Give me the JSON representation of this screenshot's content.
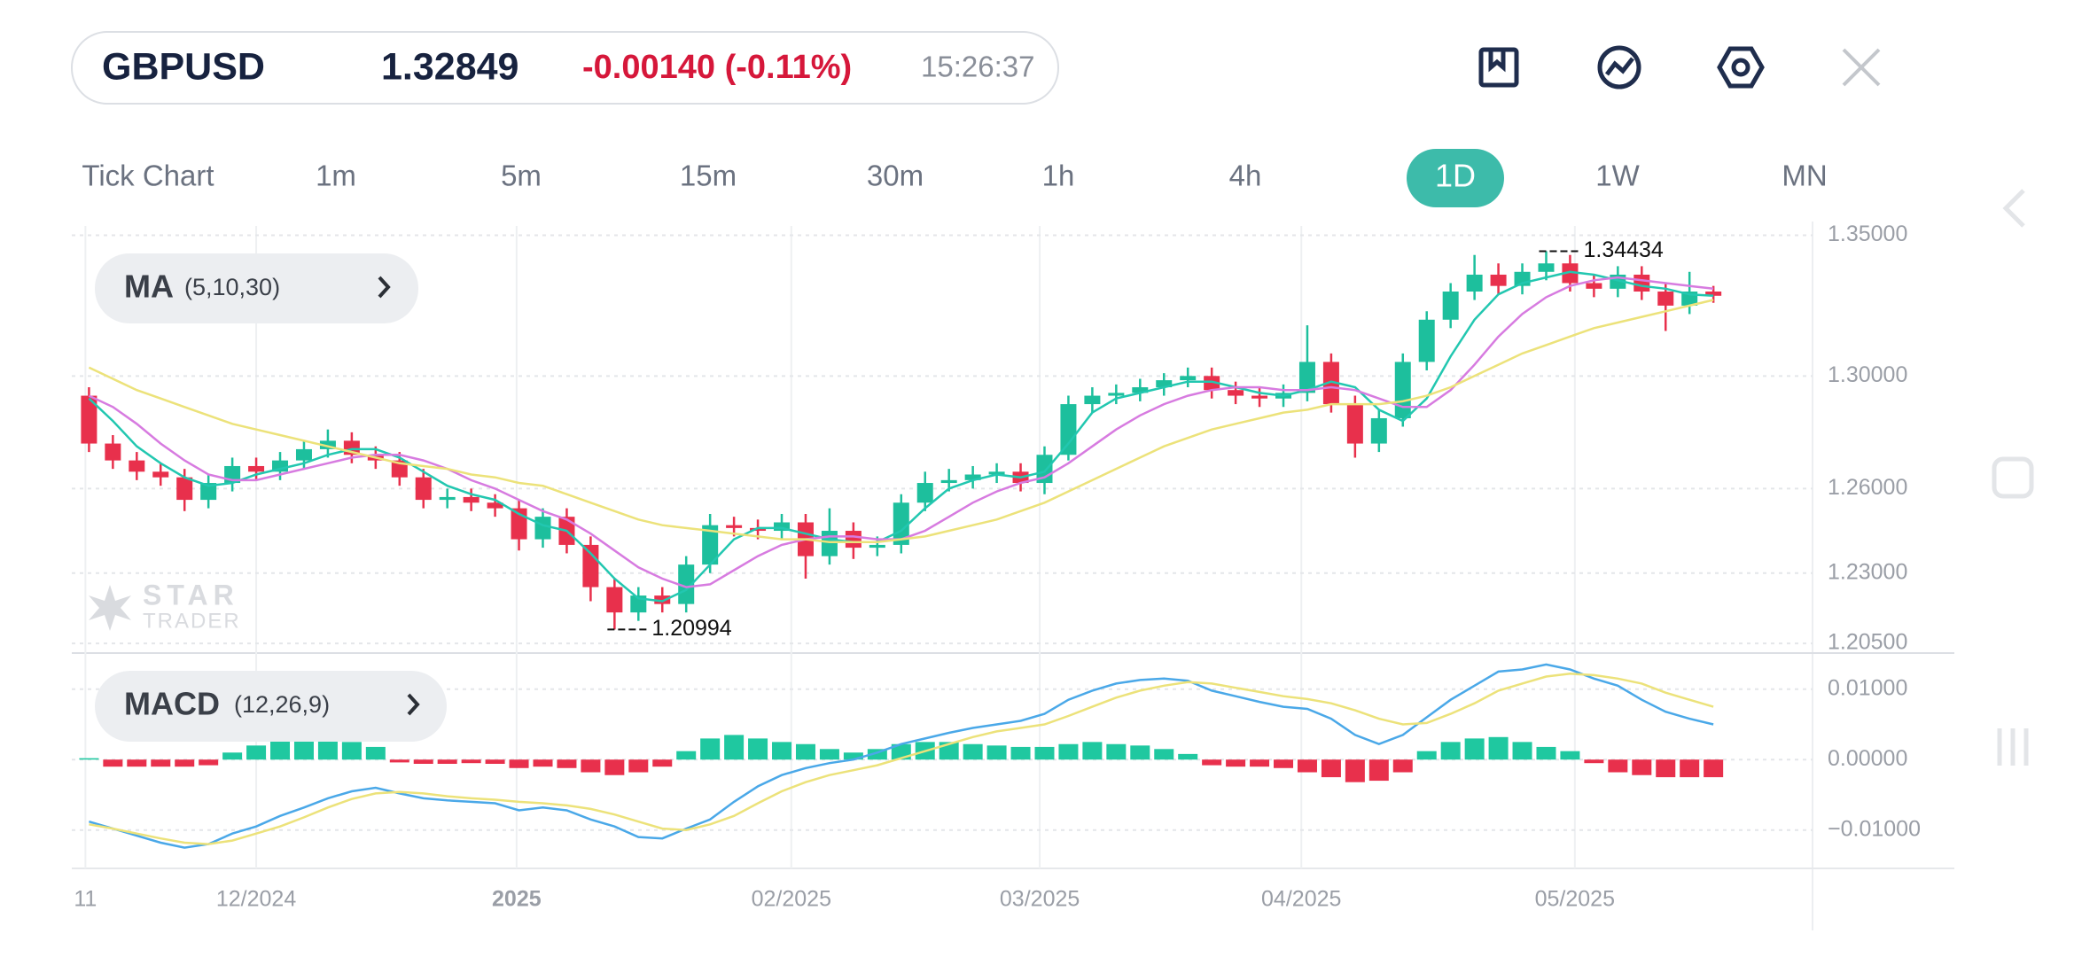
{
  "header": {
    "symbol": "GBPUSD",
    "price": "1.32849",
    "change": "-0.00140 (-0.11%)",
    "time": "15:26:37"
  },
  "timeframes": {
    "items": [
      "Tick Chart",
      "1m",
      "5m",
      "15m",
      "30m",
      "1h",
      "4h",
      "1D",
      "1W",
      "MN"
    ],
    "active": 7
  },
  "watermark": [
    "STAR",
    "TRADER"
  ],
  "chart_data": [
    {
      "type": "candlestick",
      "indicator": {
        "name": "MA",
        "params": "(5,10,30)"
      },
      "up_color": "#1dbf9d",
      "down_color": "#e8304c",
      "x": [
        1,
        3,
        5,
        7,
        9,
        11,
        13,
        15,
        17,
        19,
        21,
        23,
        25,
        27,
        29,
        31,
        33,
        35,
        37,
        39,
        41,
        43,
        45,
        47,
        49,
        51,
        53,
        55,
        57,
        59,
        61,
        63,
        65,
        67,
        69,
        71,
        73,
        75,
        77,
        79,
        81,
        83,
        85,
        87,
        89,
        91,
        93,
        95,
        97,
        99,
        101,
        103,
        105,
        107,
        109,
        111,
        113,
        115,
        117,
        119,
        121,
        123,
        125,
        127,
        129,
        131,
        133,
        135,
        137
      ],
      "open": [
        1.293,
        1.276,
        1.27,
        1.266,
        1.264,
        1.256,
        1.262,
        1.268,
        1.266,
        1.27,
        1.274,
        1.277,
        1.272,
        1.27,
        1.264,
        1.256,
        1.257,
        1.255,
        1.253,
        1.242,
        1.25,
        1.24,
        1.225,
        1.216,
        1.222,
        1.219,
        1.233,
        1.247,
        1.246,
        1.245,
        1.248,
        1.236,
        1.245,
        1.239,
        1.24,
        1.255,
        1.262,
        1.263,
        1.265,
        1.266,
        1.262,
        1.272,
        1.29,
        1.293,
        1.294,
        1.296,
        1.2985,
        1.3,
        1.295,
        1.293,
        1.292,
        1.294,
        1.305,
        1.29,
        1.276,
        1.285,
        1.305,
        1.32,
        1.33,
        1.336,
        1.332,
        1.337,
        1.34,
        1.333,
        1.331,
        1.336,
        1.33,
        1.325,
        1.33
      ],
      "high": [
        1.296,
        1.279,
        1.273,
        1.269,
        1.267,
        1.265,
        1.271,
        1.271,
        1.273,
        1.277,
        1.281,
        1.28,
        1.275,
        1.273,
        1.267,
        1.26,
        1.26,
        1.258,
        1.256,
        1.253,
        1.253,
        1.243,
        1.228,
        1.225,
        1.225,
        1.236,
        1.251,
        1.25,
        1.249,
        1.251,
        1.251,
        1.253,
        1.248,
        1.243,
        1.258,
        1.266,
        1.267,
        1.268,
        1.269,
        1.269,
        1.275,
        1.293,
        1.296,
        1.297,
        1.299,
        1.301,
        1.303,
        1.303,
        1.298,
        1.296,
        1.297,
        1.318,
        1.308,
        1.293,
        1.288,
        1.308,
        1.323,
        1.333,
        1.343,
        1.34,
        1.34,
        1.34434,
        1.343,
        1.336,
        1.339,
        1.339,
        1.333,
        1.337,
        1.332
      ],
      "low": [
        1.273,
        1.267,
        1.263,
        1.261,
        1.252,
        1.253,
        1.259,
        1.263,
        1.263,
        1.267,
        1.271,
        1.269,
        1.267,
        1.261,
        1.253,
        1.253,
        1.252,
        1.25,
        1.238,
        1.239,
        1.237,
        1.22,
        1.20994,
        1.213,
        1.216,
        1.216,
        1.23,
        1.243,
        1.242,
        1.242,
        1.228,
        1.233,
        1.235,
        1.236,
        1.237,
        1.252,
        1.259,
        1.26,
        1.262,
        1.259,
        1.258,
        1.27,
        1.287,
        1.29,
        1.291,
        1.293,
        1.296,
        1.292,
        1.29,
        1.289,
        1.289,
        1.291,
        1.287,
        1.271,
        1.273,
        1.282,
        1.302,
        1.317,
        1.327,
        1.329,
        1.329,
        1.334,
        1.33,
        1.328,
        1.328,
        1.327,
        1.316,
        1.322,
        1.326
      ],
      "close": [
        1.276,
        1.27,
        1.266,
        1.264,
        1.256,
        1.262,
        1.268,
        1.266,
        1.27,
        1.274,
        1.277,
        1.272,
        1.27,
        1.264,
        1.256,
        1.257,
        1.255,
        1.253,
        1.242,
        1.25,
        1.24,
        1.225,
        1.216,
        1.222,
        1.219,
        1.233,
        1.247,
        1.246,
        1.245,
        1.248,
        1.236,
        1.245,
        1.239,
        1.24,
        1.255,
        1.262,
        1.263,
        1.265,
        1.266,
        1.262,
        1.272,
        1.29,
        1.293,
        1.294,
        1.296,
        1.2985,
        1.3,
        1.295,
        1.293,
        1.292,
        1.294,
        1.305,
        1.29,
        1.276,
        1.285,
        1.305,
        1.32,
        1.33,
        1.336,
        1.332,
        1.337,
        1.34,
        1.333,
        1.331,
        1.336,
        1.33,
        1.325,
        1.33,
        1.3285
      ],
      "overlays": [
        {
          "color": "#22c7b0",
          "values": [
            1.292,
            1.284,
            1.275,
            1.269,
            1.264,
            1.261,
            1.262,
            1.265,
            1.267,
            1.269,
            1.272,
            1.274,
            1.274,
            1.271,
            1.266,
            1.261,
            1.258,
            1.256,
            1.251,
            1.247,
            1.245,
            1.237,
            1.228,
            1.221,
            1.22,
            1.224,
            1.233,
            1.242,
            1.246,
            1.246,
            1.244,
            1.242,
            1.241,
            1.241,
            1.245,
            1.253,
            1.26,
            1.263,
            1.265,
            1.264,
            1.266,
            1.276,
            1.287,
            1.292,
            1.294,
            1.296,
            1.298,
            1.298,
            1.296,
            1.294,
            1.293,
            1.295,
            1.298,
            1.296,
            1.288,
            1.284,
            1.292,
            1.307,
            1.32,
            1.329,
            1.333,
            1.335,
            1.337,
            1.336,
            1.334,
            1.332,
            1.331,
            1.329,
            1.3285
          ]
        },
        {
          "color": "#d77be0",
          "values": [
            1.293,
            1.289,
            1.283,
            1.276,
            1.27,
            1.265,
            1.263,
            1.263,
            1.265,
            1.267,
            1.269,
            1.271,
            1.272,
            1.272,
            1.27,
            1.267,
            1.263,
            1.26,
            1.256,
            1.252,
            1.249,
            1.244,
            1.238,
            1.232,
            1.228,
            1.225,
            1.226,
            1.231,
            1.236,
            1.24,
            1.242,
            1.243,
            1.243,
            1.242,
            1.242,
            1.245,
            1.25,
            1.255,
            1.259,
            1.262,
            1.264,
            1.269,
            1.275,
            1.281,
            1.286,
            1.29,
            1.293,
            1.295,
            1.296,
            1.296,
            1.295,
            1.295,
            1.296,
            1.295,
            1.292,
            1.289,
            1.289,
            1.295,
            1.304,
            1.314,
            1.322,
            1.328,
            1.332,
            1.334,
            1.335,
            1.334,
            1.333,
            1.332,
            1.331
          ]
        },
        {
          "color": "#ece27a",
          "values": [
            1.303,
            1.299,
            1.295,
            1.292,
            1.289,
            1.286,
            1.283,
            1.281,
            1.279,
            1.277,
            1.275,
            1.273,
            1.271,
            1.269,
            1.268,
            1.267,
            1.265,
            1.264,
            1.262,
            1.261,
            1.258,
            1.255,
            1.252,
            1.249,
            1.247,
            1.246,
            1.245,
            1.244,
            1.243,
            1.242,
            1.242,
            1.241,
            1.241,
            1.241,
            1.242,
            1.243,
            1.245,
            1.247,
            1.249,
            1.252,
            1.255,
            1.259,
            1.263,
            1.267,
            1.271,
            1.275,
            1.278,
            1.281,
            1.283,
            1.285,
            1.287,
            1.288,
            1.29,
            1.29,
            1.29,
            1.291,
            1.293,
            1.296,
            1.3,
            1.304,
            1.308,
            1.311,
            1.314,
            1.317,
            1.319,
            1.321,
            1.323,
            1.325,
            1.327
          ]
        }
      ],
      "annotations": [
        {
          "x": 123,
          "value": 1.34434
        },
        {
          "x": 45,
          "value": 1.20994
        }
      ],
      "xlim": [
        -0.44,
        145.3
      ],
      "xticks": [
        {
          "value": 0.7,
          "label": "11"
        },
        {
          "value": 15,
          "label": "12/2024"
        },
        {
          "value": 36.8,
          "label": "2025",
          "bold": true
        },
        {
          "value": 59.8,
          "label": "02/2025"
        },
        {
          "value": 80.6,
          "label": "03/2025"
        },
        {
          "value": 102.5,
          "label": "04/2025"
        },
        {
          "value": 125.4,
          "label": "05/2025"
        }
      ],
      "ylim": [
        1.2022,
        1.3533
      ],
      "yticks": [
        {
          "value": 1.35,
          "label": "1.35000"
        },
        {
          "value": 1.3,
          "label": "1.30000"
        },
        {
          "value": 1.26,
          "label": "1.26000"
        },
        {
          "value": 1.23,
          "label": "1.23000"
        },
        {
          "value": 1.205,
          "label": "1.20500"
        }
      ],
      "grid": true
    },
    {
      "type": "macd",
      "indicator": {
        "name": "MACD",
        "params": "(12,26,9)"
      },
      "lines": [
        {
          "color": "#4aa8e8",
          "values": [
            -0.0088,
            -0.0098,
            -0.0108,
            -0.0118,
            -0.0125,
            -0.012,
            -0.0105,
            -0.0095,
            -0.008,
            -0.0068,
            -0.0055,
            -0.0045,
            -0.004,
            -0.0048,
            -0.0055,
            -0.0058,
            -0.006,
            -0.0062,
            -0.0072,
            -0.0068,
            -0.0072,
            -0.0085,
            -0.0095,
            -0.011,
            -0.0112,
            -0.0098,
            -0.0085,
            -0.006,
            -0.0038,
            -0.0022,
            -0.0012,
            -0.0005,
            0.0,
            0.001,
            0.0022,
            0.003,
            0.0038,
            0.0045,
            0.005,
            0.0055,
            0.0065,
            0.0085,
            0.0098,
            0.0108,
            0.0113,
            0.0115,
            0.0112,
            0.0098,
            0.009,
            0.0082,
            0.0075,
            0.0072,
            0.0058,
            0.0035,
            0.0022,
            0.0035,
            0.006,
            0.0085,
            0.0105,
            0.0125,
            0.0128,
            0.0135,
            0.0128,
            0.0115,
            0.0105,
            0.0085,
            0.0068,
            0.0058,
            0.005
          ]
        },
        {
          "color": "#ece27a",
          "values": [
            -0.0092,
            -0.0098,
            -0.0105,
            -0.0112,
            -0.0118,
            -0.012,
            -0.0115,
            -0.0105,
            -0.0095,
            -0.0082,
            -0.0068,
            -0.0056,
            -0.0048,
            -0.0046,
            -0.0048,
            -0.0052,
            -0.0055,
            -0.0057,
            -0.006,
            -0.0062,
            -0.0065,
            -0.007,
            -0.0078,
            -0.0088,
            -0.0098,
            -0.01,
            -0.0092,
            -0.008,
            -0.0062,
            -0.0045,
            -0.0032,
            -0.0022,
            -0.0015,
            -0.0008,
            0.0002,
            0.0012,
            0.0022,
            0.0032,
            0.004,
            0.0045,
            0.005,
            0.0062,
            0.0075,
            0.0088,
            0.0098,
            0.0105,
            0.011,
            0.0108,
            0.0102,
            0.0096,
            0.009,
            0.0086,
            0.008,
            0.007,
            0.0058,
            0.005,
            0.0052,
            0.0065,
            0.008,
            0.0098,
            0.0108,
            0.0118,
            0.0122,
            0.012,
            0.0115,
            0.0108,
            0.0095,
            0.0085,
            0.0075
          ]
        }
      ],
      "histogram": {
        "up_color": "#1fc8a0",
        "down_color": "#e8304c",
        "values": [
          0.0002,
          -0.001,
          -0.001,
          -0.001,
          -0.001,
          -0.0008,
          0.001,
          0.002,
          0.0028,
          0.0028,
          0.003,
          0.0025,
          0.0018,
          -0.0004,
          -0.0006,
          -0.0006,
          -0.0005,
          -0.0006,
          -0.0012,
          -0.001,
          -0.0012,
          -0.0018,
          -0.0022,
          -0.0018,
          -0.001,
          0.0012,
          0.003,
          0.0035,
          0.003,
          0.0025,
          0.0022,
          0.0015,
          0.001,
          0.0015,
          0.0022,
          0.0025,
          0.0025,
          0.0022,
          0.002,
          0.0018,
          0.0018,
          0.0022,
          0.0025,
          0.0022,
          0.002,
          0.0015,
          0.0008,
          -0.0008,
          -0.001,
          -0.001,
          -0.0012,
          -0.0018,
          -0.0025,
          -0.0032,
          -0.003,
          -0.0018,
          0.0012,
          0.0025,
          0.003,
          0.0032,
          0.0025,
          0.0018,
          0.0012,
          -0.0005,
          -0.0018,
          -0.0022,
          -0.0025,
          -0.0025,
          -0.0025
        ]
      },
      "ylim": [
        -0.0157,
        0.0145
      ],
      "yticks": [
        {
          "value": 0.01,
          "label": "0.01000"
        },
        {
          "value": 0,
          "label": "0.00000"
        },
        {
          "value": -0.01,
          "label": "−0.01000"
        }
      ],
      "grid": true
    }
  ]
}
